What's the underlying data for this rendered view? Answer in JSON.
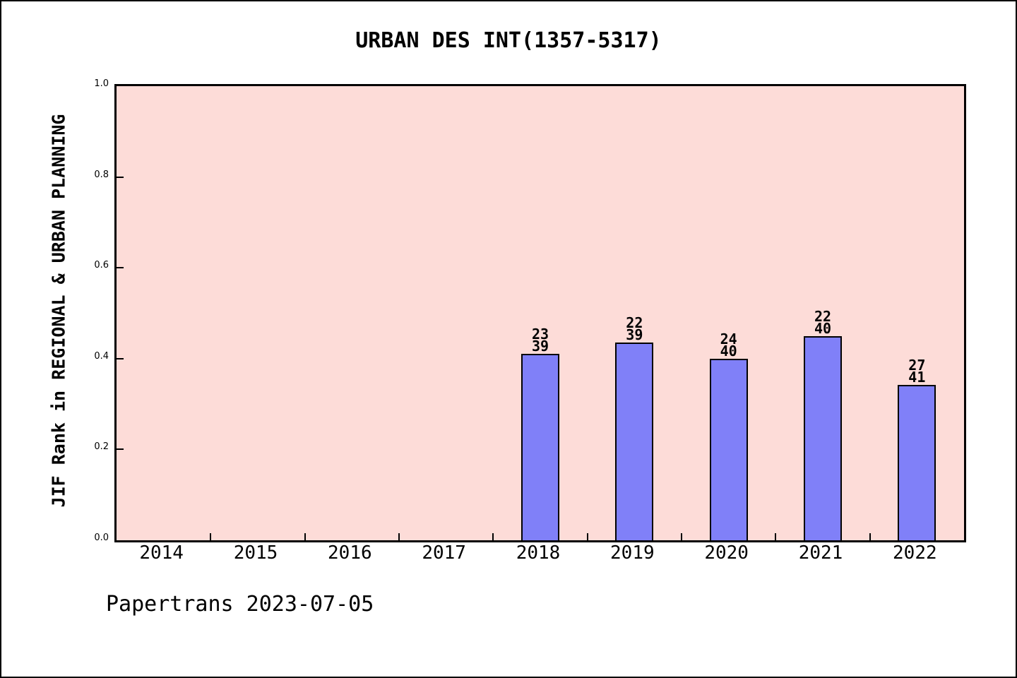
{
  "window": {
    "background": "#ffffff",
    "border_color": "#000000"
  },
  "chart": {
    "title": "URBAN DES INT(1357-5317)",
    "ylabel": "JIF Rank in REGIONAL & URBAN PLANNING",
    "footer": "Papertrans 2023-07-05",
    "plot_background": "#fddcd8",
    "bar_fill": "#8080f8",
    "bar_edge": "#000000",
    "frame_color": "#000000",
    "text_color": "#000000"
  },
  "chart_data": {
    "type": "bar",
    "title": "URBAN DES INT(1357-5317)",
    "xlabel": "",
    "ylabel": "JIF Rank in REGIONAL & URBAN PLANNING",
    "categories": [
      "2014",
      "2015",
      "2016",
      "2017",
      "2018",
      "2019",
      "2020",
      "2021",
      "2022"
    ],
    "values": [
      null,
      null,
      null,
      null,
      0.4103,
      0.4359,
      0.4,
      0.45,
      0.3415
    ],
    "bars": [
      {
        "category": "2018",
        "rank": "23",
        "total": "39",
        "value": 0.4103
      },
      {
        "category": "2019",
        "rank": "22",
        "total": "39",
        "value": 0.4359
      },
      {
        "category": "2020",
        "rank": "24",
        "total": "40",
        "value": 0.4
      },
      {
        "category": "2021",
        "rank": "22",
        "total": "40",
        "value": 0.45
      },
      {
        "category": "2022",
        "rank": "27",
        "total": "41",
        "value": 0.3415
      }
    ],
    "ylim": [
      0,
      1
    ],
    "yticks": [
      "0.0",
      "0.2",
      "0.4",
      "0.6",
      "0.8",
      "1.0"
    ],
    "grid": false,
    "legend": "none"
  }
}
